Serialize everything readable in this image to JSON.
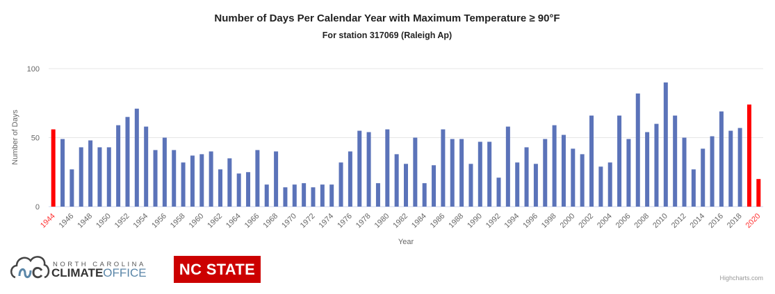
{
  "chart_data": {
    "type": "bar",
    "title": "Number of Days Per Calendar Year with Maximum Temperature ≥ 90°F",
    "subtitle": "For station 317069 (Raleigh Ap)",
    "xlabel": "Year",
    "ylabel": "Number of Days",
    "ylim": [
      0,
      100
    ],
    "yticks": [
      "0",
      "50",
      "100"
    ],
    "grid": true,
    "categories": [
      1944,
      1945,
      1946,
      1947,
      1948,
      1949,
      1950,
      1951,
      1952,
      1953,
      1954,
      1955,
      1956,
      1957,
      1958,
      1959,
      1960,
      1961,
      1962,
      1963,
      1964,
      1965,
      1966,
      1967,
      1968,
      1969,
      1970,
      1971,
      1972,
      1973,
      1974,
      1975,
      1976,
      1977,
      1978,
      1979,
      1980,
      1981,
      1982,
      1983,
      1984,
      1985,
      1986,
      1987,
      1988,
      1989,
      1990,
      1991,
      1992,
      1993,
      1994,
      1995,
      1996,
      1997,
      1998,
      1999,
      2000,
      2001,
      2002,
      2003,
      2004,
      2005,
      2006,
      2007,
      2008,
      2009,
      2010,
      2011,
      2012,
      2013,
      2014,
      2015,
      2016,
      2017,
      2018,
      2019,
      2020
    ],
    "values": [
      56,
      49,
      27,
      43,
      48,
      43,
      43,
      59,
      65,
      71,
      58,
      41,
      50,
      41,
      32,
      37,
      38,
      40,
      27,
      35,
      24,
      25,
      41,
      16,
      40,
      14,
      16,
      17,
      14,
      16,
      16,
      32,
      40,
      55,
      54,
      17,
      56,
      38,
      31,
      50,
      17,
      30,
      56,
      49,
      49,
      31,
      47,
      47,
      21,
      58,
      32,
      43,
      31,
      49,
      59,
      52,
      42,
      38,
      66,
      29,
      32,
      66,
      49,
      82,
      54,
      60,
      90,
      66,
      50,
      27,
      42,
      51,
      69,
      55,
      57,
      74,
      20
    ],
    "highlighted_years": [
      1944,
      2019,
      2020
    ],
    "highlighted_labels": [
      1944,
      2020
    ],
    "colors": {
      "bar": "#5b73b9",
      "highlight": "#ff0000",
      "highlight_label": "#ff3333",
      "grid": "#e6e6e6"
    },
    "credits": "Highcharts.com"
  },
  "logos": {
    "climate_office_top": "NORTH CAROLINA",
    "climate_office_bold": "CLIMATE",
    "climate_office_light": "OFFICE",
    "ncstate": "NC STATE"
  }
}
